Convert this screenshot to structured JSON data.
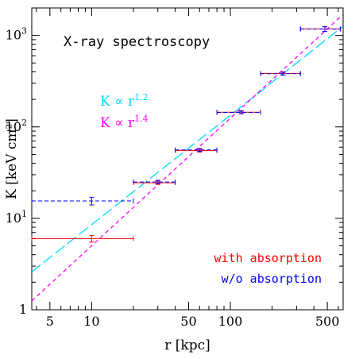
{
  "chart_data": {
    "type": "scatter",
    "title": "X-ray spectroscopy",
    "xlabel": "r [kpc]",
    "ylabel": "K [keV cm²]",
    "x_scale": "log",
    "y_scale": "log",
    "xlim": [
      3.7,
      650
    ],
    "ylim": [
      1,
      2000
    ],
    "x_ticks": [
      5,
      10,
      50,
      100,
      500
    ],
    "x_tick_labels": [
      "5",
      "10",
      "50",
      "100",
      "500"
    ],
    "y_ticks": [
      1,
      10,
      100,
      1000
    ],
    "y_tick_labels_base": [
      "1",
      "10",
      "10",
      "10"
    ],
    "y_tick_labels_exp": [
      "",
      "1",
      "2",
      "3"
    ],
    "lines": [
      {
        "label_base": "K ∝ r",
        "label_exp": "1.2",
        "color": "#00d8ff",
        "dash": "long",
        "points": [
          [
            3.7,
            2.6
          ],
          [
            650,
            1260
          ]
        ]
      },
      {
        "label_base": "K ∝ r",
        "label_exp": "1.4",
        "color": "#ff00ff",
        "dash": "short",
        "points": [
          [
            3.7,
            1.25
          ],
          [
            650,
            1700
          ]
        ]
      }
    ],
    "series": [
      {
        "name": "with absorption",
        "color": "#ff0000",
        "dash": "solid",
        "points": [
          {
            "x": 10,
            "y": 6.0,
            "xerr": [
              3.7,
              20
            ],
            "yerr": [
              5.5,
              6.5
            ]
          },
          {
            "x": 30,
            "y": 24.5,
            "xerr": [
              20,
              40
            ],
            "yerr": [
              23.5,
              25.5
            ]
          },
          {
            "x": 60,
            "y": 55,
            "xerr": [
              40,
              80
            ],
            "yerr": [
              53,
              57
            ]
          },
          {
            "x": 120,
            "y": 145,
            "xerr": [
              80,
              165
            ],
            "yerr": [
              140,
              150
            ]
          },
          {
            "x": 240,
            "y": 385,
            "xerr": [
              165,
              320
            ],
            "yerr": [
              370,
              400
            ]
          },
          {
            "x": 480,
            "y": 1180,
            "xerr": [
              320,
              620
            ],
            "yerr": [
              1110,
              1250
            ]
          }
        ]
      },
      {
        "name": "w/o absorption",
        "color": "#0000ff",
        "dash": "dashed",
        "points": [
          {
            "x": 10,
            "y": 15.5,
            "xerr": [
              3.7,
              20
            ],
            "yerr": [
              14.0,
              17.0
            ]
          },
          {
            "x": 30,
            "y": 25,
            "xerr": [
              20,
              40
            ],
            "yerr": [
              24,
              26
            ]
          },
          {
            "x": 60,
            "y": 56,
            "xerr": [
              40,
              80
            ],
            "yerr": [
              54,
              58
            ]
          },
          {
            "x": 120,
            "y": 144,
            "xerr": [
              80,
              165
            ],
            "yerr": [
              139,
              149
            ]
          },
          {
            "x": 240,
            "y": 382,
            "xerr": [
              165,
              320
            ],
            "yerr": [
              368,
              396
            ]
          },
          {
            "x": 480,
            "y": 1175,
            "xerr": [
              320,
              620
            ],
            "yerr": [
              1105,
              1245
            ]
          }
        ]
      }
    ],
    "legend_placement": "bottom-right",
    "line_label_placement": "middle-left",
    "grid": false
  }
}
